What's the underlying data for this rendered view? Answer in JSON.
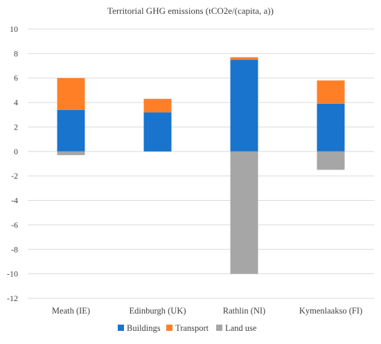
{
  "chart_data": {
    "type": "bar",
    "stacked": true,
    "title": "Territorial GHG emissions (tCO2e/(capita, a))",
    "categories": [
      "Meath (IE)",
      "Edinburgh (UK)",
      "Rathlin (NI)",
      "Kymenlaakso (FI)"
    ],
    "series": [
      {
        "name": "Buildings",
        "color": "#1874CD",
        "values": [
          3.4,
          3.2,
          7.5,
          3.9
        ]
      },
      {
        "name": "Transport",
        "color": "#FF7F27",
        "values": [
          2.6,
          1.1,
          0.2,
          1.9
        ]
      },
      {
        "name": "Land use",
        "color": "#A6A6A6",
        "values": [
          -0.3,
          0,
          -10.0,
          -1.5
        ]
      }
    ],
    "ylim": [
      -12,
      10
    ],
    "yticks": [
      10,
      8,
      6,
      4,
      2,
      0,
      -2,
      -4,
      -6,
      -8,
      -10,
      -12
    ],
    "grid": true,
    "legend_position": "bottom",
    "xlabel": "",
    "ylabel": ""
  }
}
